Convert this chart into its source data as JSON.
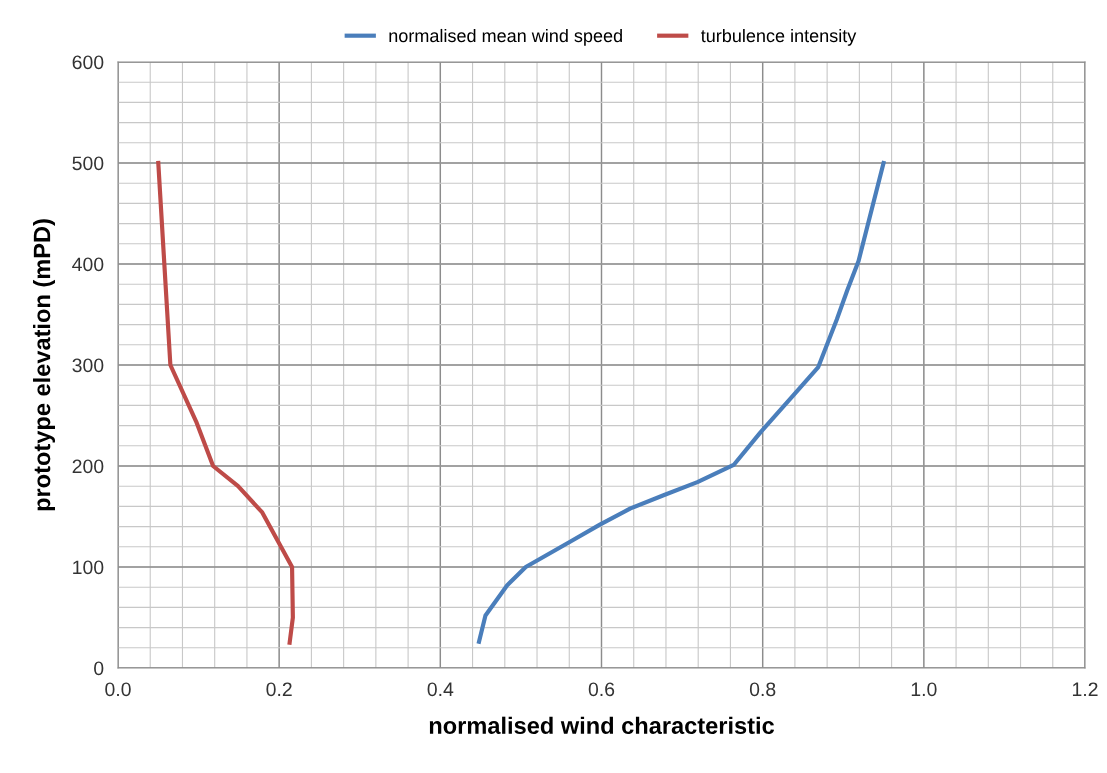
{
  "chart_data": {
    "type": "line",
    "xlabel": "normalised wind characteristic",
    "ylabel": "prototype elevation (mPD)",
    "xlim": [
      0,
      1.2
    ],
    "xticks": [
      {
        "value": 0,
        "label": "0.0"
      },
      {
        "value": 0.2,
        "label": "0.2"
      },
      {
        "value": 0.4,
        "label": "0.4"
      },
      {
        "value": 0.6,
        "label": "0.6"
      },
      {
        "value": 0.8,
        "label": "0.8"
      },
      {
        "value": 1.0,
        "label": "1.0"
      },
      {
        "value": 1.2,
        "label": "1.2"
      }
    ],
    "ylim": [
      0,
      600
    ],
    "yticks": [
      0,
      100,
      200,
      300,
      400,
      500,
      600
    ],
    "grid": true,
    "legend": "top",
    "marker": "none",
    "line_style": "solid",
    "series": [
      {
        "name": "normalised mean wind speed",
        "color": "#4a7ebb",
        "x": [
          0.448,
          0.456,
          0.483,
          0.506,
          0.561,
          0.598,
          0.636,
          0.677,
          0.719,
          0.764,
          0.797,
          0.838,
          0.869,
          0.892,
          0.905,
          0.919,
          0.95
        ],
        "values": [
          26,
          52,
          82,
          100,
          125,
          142,
          158,
          171,
          184,
          201,
          233,
          270,
          298,
          345,
          374,
          403,
          500
        ]
      },
      {
        "name": "turbulence intensity",
        "color": "#be4b48",
        "x": [
          0.213,
          0.217,
          0.216,
          0.179,
          0.149,
          0.118,
          0.097,
          0.065,
          0.05
        ],
        "values": [
          25,
          50,
          100,
          154,
          180,
          200,
          244,
          300,
          500
        ]
      }
    ]
  }
}
